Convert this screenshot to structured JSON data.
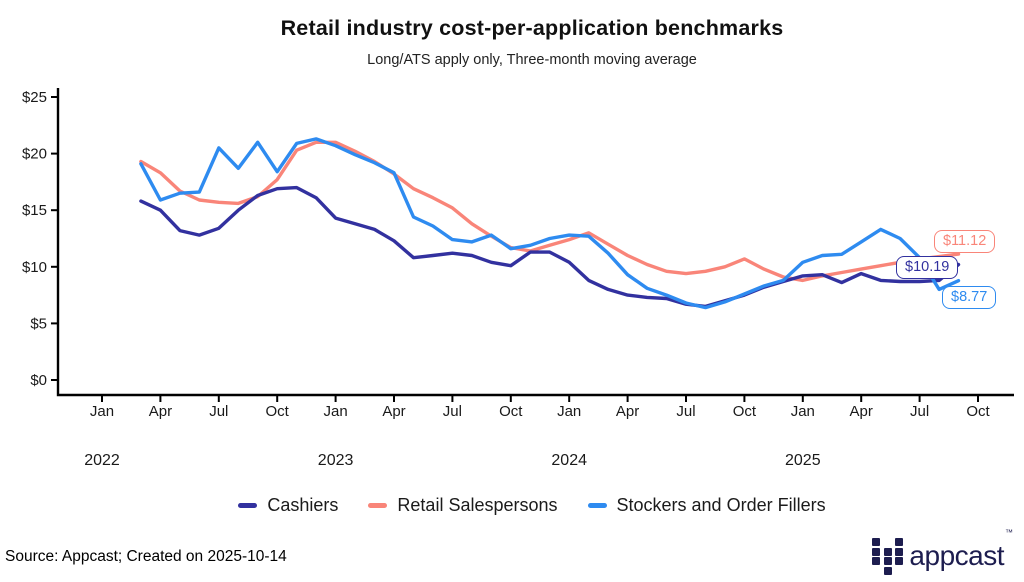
{
  "title": "Retail industry cost-per-application benchmarks",
  "subtitle": "Long/ATS apply only, Three-month moving average",
  "chart_data": {
    "type": "line",
    "ylim": [
      0,
      25
    ],
    "y_ticks": [
      "$0",
      "$5",
      "$10",
      "$15",
      "$20",
      "$25"
    ],
    "x_tick_months": [
      "Jan",
      "Apr",
      "Jul",
      "Oct"
    ],
    "years": [
      "2022",
      "2023",
      "2024",
      "2025"
    ],
    "x_range_note": "monthly data, Mar 2022 through Sep 2025, three-month moving average",
    "start_month_index": 2,
    "grid": "off",
    "legend_position": "bottom-center",
    "series": [
      {
        "name": "Cashiers",
        "color": "#32319f",
        "values": [
          15.8,
          15.0,
          13.2,
          12.8,
          13.4,
          15.0,
          16.3,
          16.9,
          17.0,
          16.1,
          14.3,
          13.8,
          13.3,
          12.3,
          10.8,
          11.0,
          11.2,
          11.0,
          10.4,
          10.1,
          11.3,
          11.3,
          10.4,
          8.8,
          8.0,
          7.5,
          7.3,
          7.2,
          6.7,
          6.5,
          7.0,
          7.5,
          8.2,
          8.7,
          9.2,
          9.3,
          8.6,
          9.4,
          8.8,
          8.7,
          8.7,
          8.8,
          10.19
        ]
      },
      {
        "name": "Retail Salespersons",
        "color": "#f98579",
        "values": [
          19.3,
          18.3,
          16.7,
          15.9,
          15.7,
          15.6,
          16.2,
          17.7,
          20.3,
          21.0,
          21.0,
          20.2,
          19.3,
          18.2,
          16.9,
          16.1,
          15.2,
          13.8,
          12.7,
          11.7,
          11.4,
          11.9,
          12.4,
          13.0,
          12.0,
          11.0,
          10.2,
          9.6,
          9.4,
          9.6,
          10.0,
          10.7,
          9.8,
          9.1,
          8.8,
          9.2,
          9.5,
          9.8,
          10.1,
          10.4,
          10.7,
          10.9,
          11.12
        ]
      },
      {
        "name": "Stockers and Order Fillers",
        "color": "#2e8bf0",
        "values": [
          19.1,
          15.9,
          16.5,
          16.6,
          20.5,
          18.7,
          21.0,
          18.4,
          20.9,
          21.3,
          20.7,
          19.9,
          19.2,
          18.3,
          14.4,
          13.6,
          12.4,
          12.2,
          12.8,
          11.6,
          11.9,
          12.5,
          12.8,
          12.7,
          11.2,
          9.3,
          8.1,
          7.5,
          6.8,
          6.4,
          6.9,
          7.6,
          8.3,
          8.8,
          10.4,
          11.0,
          11.1,
          12.2,
          13.3,
          12.5,
          10.8,
          8.0,
          8.77
        ]
      }
    ],
    "end_labels": [
      {
        "text": "$11.12",
        "color": "#f98579"
      },
      {
        "text": "$10.19",
        "color": "#32319f"
      },
      {
        "text": "$8.77",
        "color": "#2e8bf0"
      }
    ]
  },
  "footer": {
    "source": "Source: Appcast; Created on 2025-10-14"
  },
  "logo": {
    "text": "appcast",
    "tm": "™"
  }
}
